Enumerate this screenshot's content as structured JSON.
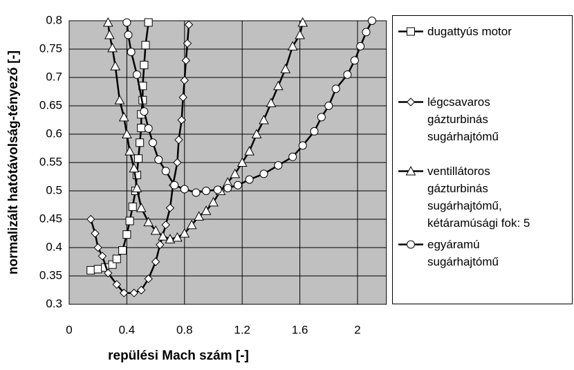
{
  "chart_data": {
    "type": "line",
    "x_label": "repülési Mach szám [-]",
    "y_label": "normalizált hatótávolság-tényező [-]",
    "xlim": [
      0,
      2.2
    ],
    "xticks": [
      0,
      0.4,
      0.8,
      1.2,
      1.6,
      2
    ],
    "ylim": [
      0.3,
      0.8
    ],
    "yticks": [
      0.3,
      0.35,
      0.4,
      0.45,
      0.5,
      0.55,
      0.6,
      0.65,
      0.7,
      0.75,
      0.8
    ],
    "grid": true,
    "background": "#c0c0c0",
    "legend": "right",
    "series": [
      {
        "name": "dugattyús motor",
        "color": "#000000",
        "marker": "square",
        "x": [
          0.15,
          0.2,
          0.25,
          0.3,
          0.33,
          0.37,
          0.4,
          0.42,
          0.44,
          0.46,
          0.47,
          0.48,
          0.49,
          0.5,
          0.5,
          0.51,
          0.51,
          0.52,
          0.53,
          0.55
        ],
        "values": [
          0.36,
          0.362,
          0.365,
          0.37,
          0.38,
          0.395,
          0.423,
          0.447,
          0.472,
          0.5,
          0.528,
          0.557,
          0.585,
          0.611,
          0.635,
          0.66,
          0.685,
          0.722,
          0.757,
          0.797
        ]
      },
      {
        "name": "légcsavaros\ngázturbinás\nsugárhajtómű",
        "color": "#000000",
        "marker": "diamond",
        "x": [
          0.15,
          0.18,
          0.2,
          0.23,
          0.27,
          0.33,
          0.38,
          0.45,
          0.5,
          0.55,
          0.6,
          0.63,
          0.67,
          0.7,
          0.72,
          0.75,
          0.76,
          0.78,
          0.79,
          0.8,
          0.81,
          0.82,
          0.83
        ],
        "values": [
          0.45,
          0.425,
          0.4,
          0.385,
          0.355,
          0.335,
          0.32,
          0.32,
          0.325,
          0.345,
          0.375,
          0.405,
          0.44,
          0.47,
          0.51,
          0.55,
          0.59,
          0.625,
          0.665,
          0.695,
          0.73,
          0.76,
          0.793
        ]
      },
      {
        "name": "ventillátoros\ngázturbinás\nsugárhajtómű,\nkétáramúsági fok: 5",
        "color": "#000000",
        "marker": "triangle",
        "x": [
          0.27,
          0.28,
          0.3,
          0.32,
          0.35,
          0.38,
          0.4,
          0.42,
          0.45,
          0.47,
          0.5,
          0.55,
          0.6,
          0.65,
          0.7,
          0.75,
          0.8,
          0.85,
          0.9,
          0.95,
          1.0,
          1.05,
          1.1,
          1.15,
          1.2,
          1.25,
          1.3,
          1.35,
          1.4,
          1.45,
          1.5,
          1.55,
          1.6,
          1.62
        ],
        "values": [
          0.797,
          0.775,
          0.752,
          0.72,
          0.66,
          0.63,
          0.6,
          0.57,
          0.54,
          0.505,
          0.47,
          0.445,
          0.43,
          0.42,
          0.415,
          0.418,
          0.425,
          0.44,
          0.455,
          0.465,
          0.48,
          0.5,
          0.515,
          0.53,
          0.55,
          0.57,
          0.6,
          0.625,
          0.655,
          0.685,
          0.715,
          0.755,
          0.775,
          0.797
        ]
      },
      {
        "name": "egyáramú\nsugárhajtómű",
        "color": "#000000",
        "marker": "circle",
        "x": [
          0.4,
          0.41,
          0.43,
          0.47,
          0.52,
          0.55,
          0.58,
          0.62,
          0.67,
          0.73,
          0.8,
          0.88,
          0.95,
          1.03,
          1.1,
          1.17,
          1.25,
          1.35,
          1.45,
          1.55,
          1.62,
          1.7,
          1.75,
          1.8,
          1.85,
          1.93,
          1.98,
          2.02,
          2.06,
          2.1
        ],
        "values": [
          0.797,
          0.775,
          0.745,
          0.705,
          0.64,
          0.61,
          0.585,
          0.555,
          0.535,
          0.51,
          0.503,
          0.497,
          0.5,
          0.502,
          0.505,
          0.51,
          0.52,
          0.53,
          0.545,
          0.56,
          0.58,
          0.605,
          0.63,
          0.65,
          0.68,
          0.705,
          0.73,
          0.755,
          0.78,
          0.8
        ]
      }
    ]
  }
}
